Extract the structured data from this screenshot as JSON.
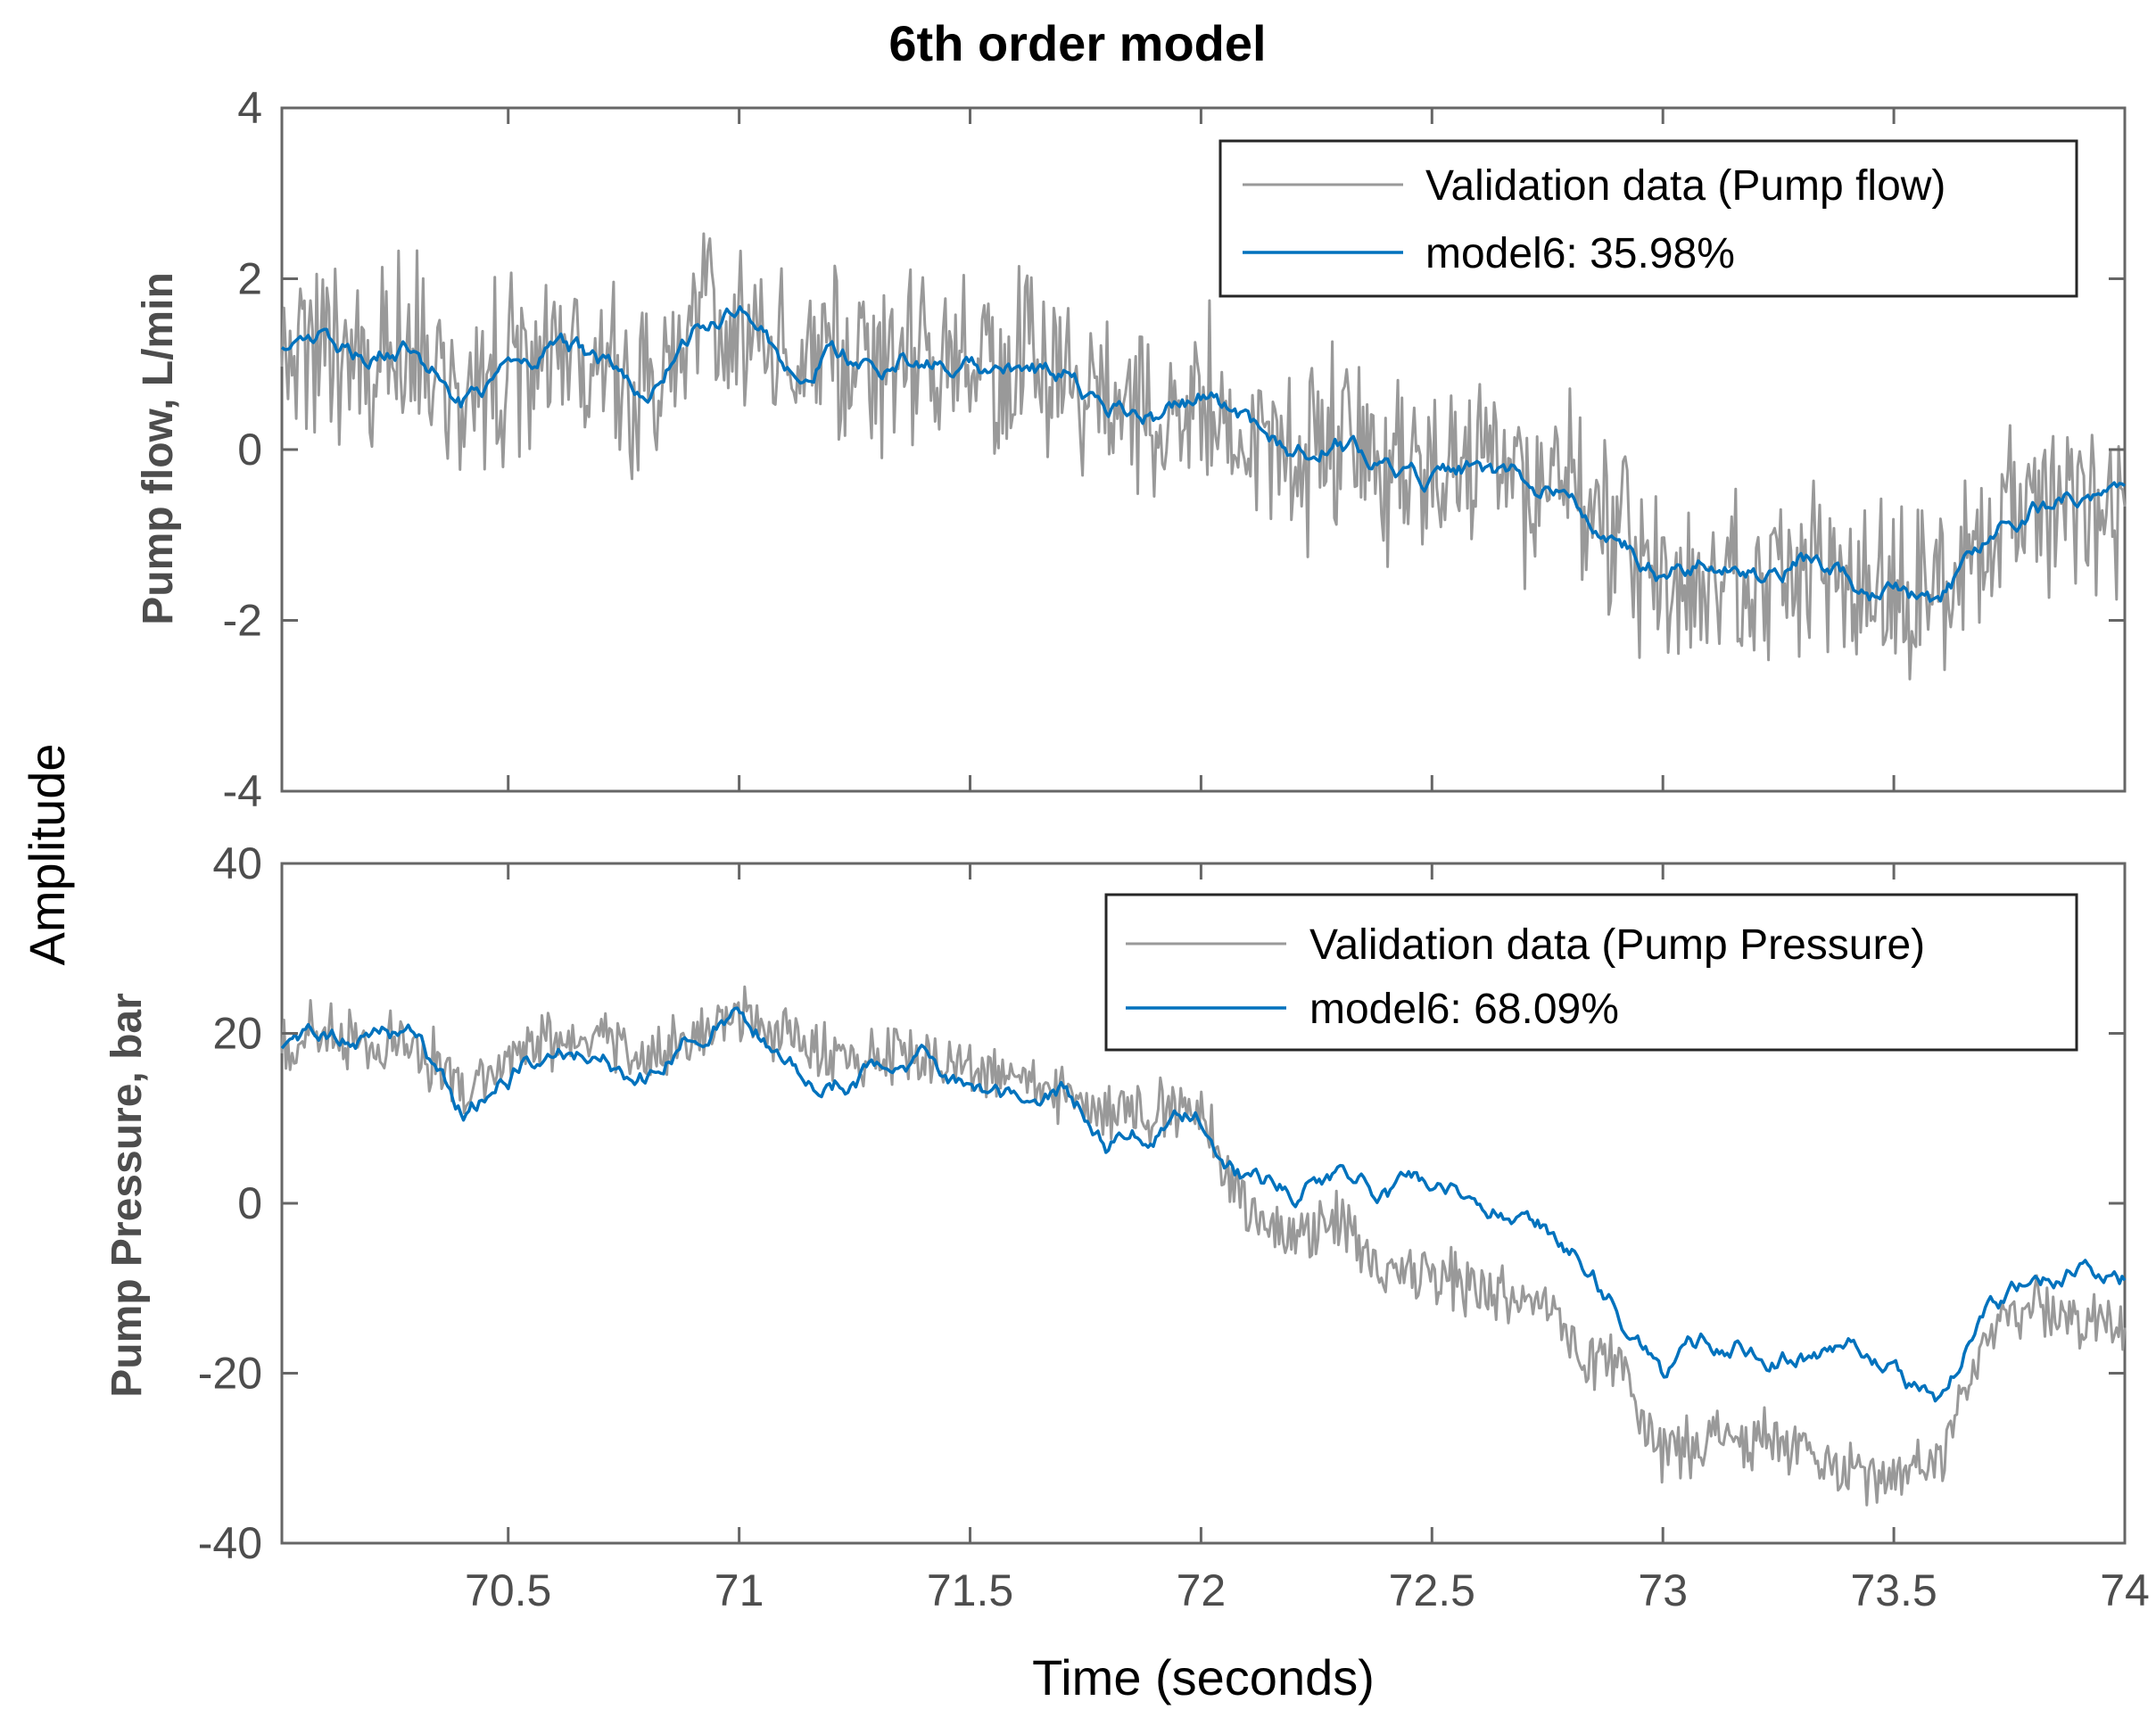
{
  "chart_data": {
    "type": "line",
    "title": "6th order model",
    "xlabel": "Time (seconds)",
    "shared_ylabel": "Amplitude",
    "xlim": [
      70.01,
      74.0
    ],
    "xticks": [
      70.5,
      71,
      71.5,
      72,
      72.5,
      73,
      73.5,
      74
    ],
    "xtick_labels": [
      "70.5",
      "71",
      "71.5",
      "72",
      "72.5",
      "73",
      "73.5",
      "74"
    ],
    "colors": {
      "validation": "#999999",
      "model": "#0072bd",
      "axes": "#666666"
    },
    "subplots": [
      {
        "ylabel": "Pump flow, L/min",
        "ylim": [
          -4,
          4
        ],
        "yticks": [
          -4,
          -2,
          0,
          2,
          4
        ],
        "ytick_labels": [
          "-4",
          "-2",
          "0",
          "2",
          "4"
        ],
        "legend": {
          "position": "top-right",
          "entries": [
            "Validation data (Pump flow)",
            "model6: 35.98%"
          ]
        },
        "series": [
          {
            "name": "Validation data (Pump flow)",
            "x": [
              70.0,
              70.1,
              70.2,
              70.3,
              70.4,
              70.5,
              70.6,
              70.7,
              70.8,
              70.9,
              71.0,
              71.1,
              71.2,
              71.3,
              71.4,
              71.5,
              71.6,
              71.7,
              71.8,
              71.9,
              72.0,
              72.1,
              72.2,
              72.3,
              72.4,
              72.5,
              72.6,
              72.7,
              72.8,
              72.9,
              73.0,
              73.1,
              73.2,
              73.3,
              73.4,
              73.5,
              73.6,
              73.7,
              73.8,
              73.9,
              74.0
            ],
            "y": [
              1.2,
              1.3,
              1.1,
              1.2,
              0.6,
              0.9,
              1.3,
              1.0,
              0.6,
              1.4,
              1.6,
              1.0,
              1.2,
              1.0,
              1.1,
              1.0,
              0.9,
              0.9,
              0.5,
              0.4,
              0.6,
              0.3,
              -0.1,
              0.1,
              -0.2,
              -0.3,
              -0.2,
              -0.4,
              -0.5,
              -0.9,
              -1.4,
              -1.3,
              -1.5,
              -1.3,
              -1.5,
              -1.7,
              -1.8,
              -1.0,
              -0.6,
              -0.6,
              -0.6
            ],
            "noise_amplitude": 1.3
          },
          {
            "name": "model6: 35.98%",
            "x": [
              70.0,
              70.1,
              70.2,
              70.3,
              70.4,
              70.5,
              70.6,
              70.7,
              70.8,
              70.9,
              71.0,
              71.1,
              71.2,
              71.3,
              71.4,
              71.5,
              71.6,
              71.7,
              71.8,
              71.9,
              72.0,
              72.1,
              72.2,
              72.3,
              72.4,
              72.5,
              72.6,
              72.7,
              72.8,
              72.9,
              73.0,
              73.1,
              73.2,
              73.3,
              73.4,
              73.5,
              73.6,
              73.7,
              73.8,
              73.9,
              74.0
            ],
            "y": [
              1.2,
              1.3,
              1.1,
              1.2,
              0.6,
              0.9,
              1.3,
              1.0,
              0.6,
              1.4,
              1.6,
              1.0,
              1.2,
              1.0,
              1.1,
              1.0,
              0.9,
              0.9,
              0.5,
              0.4,
              0.6,
              0.3,
              -0.1,
              0.1,
              -0.2,
              -0.3,
              -0.2,
              -0.4,
              -0.5,
              -0.9,
              -1.4,
              -1.3,
              -1.5,
              -1.3,
              -1.5,
              -1.7,
              -1.8,
              -1.0,
              -0.6,
              -0.6,
              -0.7
            ],
            "noise_amplitude": 0.12
          }
        ]
      },
      {
        "ylabel": "Pump Pressure, bar",
        "ylim": [
          -40,
          40
        ],
        "yticks": [
          -40,
          -20,
          0,
          20,
          40
        ],
        "ytick_labels": [
          "-40",
          "-20",
          "0",
          "20",
          "40"
        ],
        "legend": {
          "position": "top-right",
          "entries": [
            "Validation data (Pump Pressure)",
            "model6: 68.09%"
          ]
        },
        "series": [
          {
            "name": "Validation data (Pump Pressure)",
            "x": [
              70.0,
              70.1,
              70.2,
              70.3,
              70.4,
              70.5,
              70.6,
              70.7,
              70.8,
              70.9,
              71.0,
              71.1,
              71.2,
              71.3,
              71.4,
              71.5,
              71.6,
              71.7,
              71.8,
              71.9,
              72.0,
              72.1,
              72.2,
              72.3,
              72.4,
              72.5,
              72.6,
              72.7,
              72.8,
              72.9,
              73.0,
              73.1,
              73.2,
              73.3,
              73.4,
              73.5,
              73.6,
              73.7,
              73.8,
              73.9,
              74.0
            ],
            "y": [
              18,
              20,
              19,
              18,
              14,
              17,
              19,
              19,
              18,
              20,
              22,
              20,
              17,
              17,
              18,
              16,
              14,
              13,
              10,
              11,
              10,
              0,
              -4,
              -2,
              -8,
              -8,
              -10,
              -11,
              -16,
              -20,
              -30,
              -27,
              -28,
              -29,
              -31,
              -33,
              -30,
              -15,
              -12,
              -14,
              -14
            ],
            "noise_amplitude": 4.5
          },
          {
            "name": "model6: 68.09%",
            "x": [
              70.0,
              70.1,
              70.2,
              70.3,
              70.4,
              70.5,
              70.6,
              70.7,
              70.8,
              70.9,
              71.0,
              71.1,
              71.2,
              71.3,
              71.4,
              71.5,
              71.6,
              71.7,
              71.8,
              71.9,
              72.0,
              72.1,
              72.2,
              72.3,
              72.4,
              72.5,
              72.6,
              72.7,
              72.8,
              72.9,
              73.0,
              73.1,
              73.2,
              73.3,
              73.4,
              73.5,
              73.6,
              73.7,
              73.8,
              73.9,
              74.0
            ],
            "y": [
              18,
              21,
              20,
              19,
              11,
              15,
              19,
              17,
              15,
              20,
              23,
              17,
              14,
              16,
              18,
              14,
              13,
              14,
              7,
              9,
              10,
              3,
              2,
              4,
              1,
              2,
              0,
              -1,
              -5,
              -12,
              -20,
              -16,
              -17,
              -18,
              -17,
              -20,
              -23,
              -12,
              -9,
              -8,
              -9
            ],
            "noise_amplitude": 1.2
          }
        ]
      }
    ]
  }
}
